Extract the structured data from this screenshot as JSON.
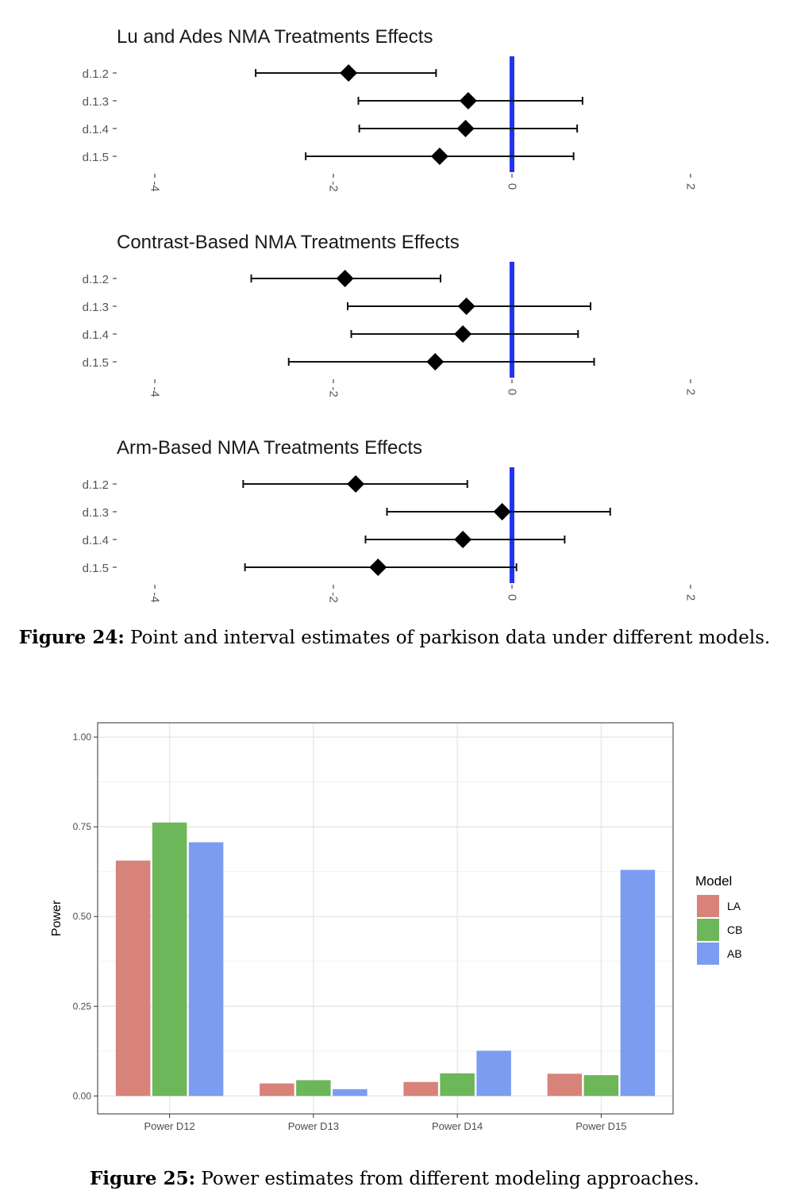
{
  "chart_data": [
    {
      "type": "forest",
      "title": "Lu and Ades NMA Treatments Effects",
      "xlim": [
        -4.4,
        2.4
      ],
      "x_ticks": [
        -4,
        -2,
        0,
        2
      ],
      "reference_line": 0,
      "reference_color": "#2233ee",
      "categories": [
        "d.1.2",
        "d.1.3",
        "d.1.4",
        "d.1.5"
      ],
      "estimates": [
        -1.83,
        -0.49,
        -0.52,
        -0.81
      ],
      "lower": [
        -2.87,
        -1.72,
        -1.71,
        -2.31
      ],
      "upper": [
        -0.85,
        0.79,
        0.73,
        0.69
      ]
    },
    {
      "type": "forest",
      "title": "Contrast-Based NMA Treatments Effects",
      "xlim": [
        -4.4,
        2.4
      ],
      "x_ticks": [
        -4,
        -2,
        0,
        2
      ],
      "reference_line": 0,
      "reference_color": "#2233ee",
      "categories": [
        "d.1.2",
        "d.1.3",
        "d.1.4",
        "d.1.5"
      ],
      "estimates": [
        -1.87,
        -0.51,
        -0.55,
        -0.86
      ],
      "lower": [
        -2.92,
        -1.84,
        -1.8,
        -2.5
      ],
      "upper": [
        -0.8,
        0.88,
        0.74,
        0.92
      ]
    },
    {
      "type": "forest",
      "title": "Arm-Based NMA Treatments Effects",
      "xlim": [
        -4.4,
        2.4
      ],
      "x_ticks": [
        -4,
        -2,
        0,
        2
      ],
      "reference_line": 0,
      "reference_color": "#2233ee",
      "categories": [
        "d.1.2",
        "d.1.3",
        "d.1.4",
        "d.1.5"
      ],
      "estimates": [
        -1.75,
        -0.11,
        -0.55,
        -1.5
      ],
      "lower": [
        -3.01,
        -1.4,
        -1.64,
        -2.99
      ],
      "upper": [
        -0.5,
        1.1,
        0.59,
        0.05
      ]
    },
    {
      "type": "bar",
      "categories": [
        "Power D12",
        "Power D13",
        "Power D14",
        "Power D15"
      ],
      "ylabel": "Power",
      "ylim": [
        -0.05,
        1.04
      ],
      "y_ticks": [
        "0.00",
        "0.25",
        "0.50",
        "0.75",
        "1.00"
      ],
      "legend_title": "Model",
      "legend_position": "right",
      "grid": true,
      "series": [
        {
          "name": "LA",
          "color": "#d7837a",
          "values": [
            0.656,
            0.035,
            0.039,
            0.062
          ]
        },
        {
          "name": "CB",
          "color": "#6db65a",
          "values": [
            0.762,
            0.044,
            0.063,
            0.058
          ]
        },
        {
          "name": "AB",
          "color": "#7b9cf0",
          "values": [
            0.707,
            0.019,
            0.126,
            0.63
          ]
        }
      ]
    }
  ],
  "captions": {
    "fig24_label": "Figure 24:",
    "fig24_text": " Point and interval estimates of parkison data under different models.",
    "fig25_label": "Figure 25:",
    "fig25_text": " Power estimates from different modeling approaches."
  }
}
